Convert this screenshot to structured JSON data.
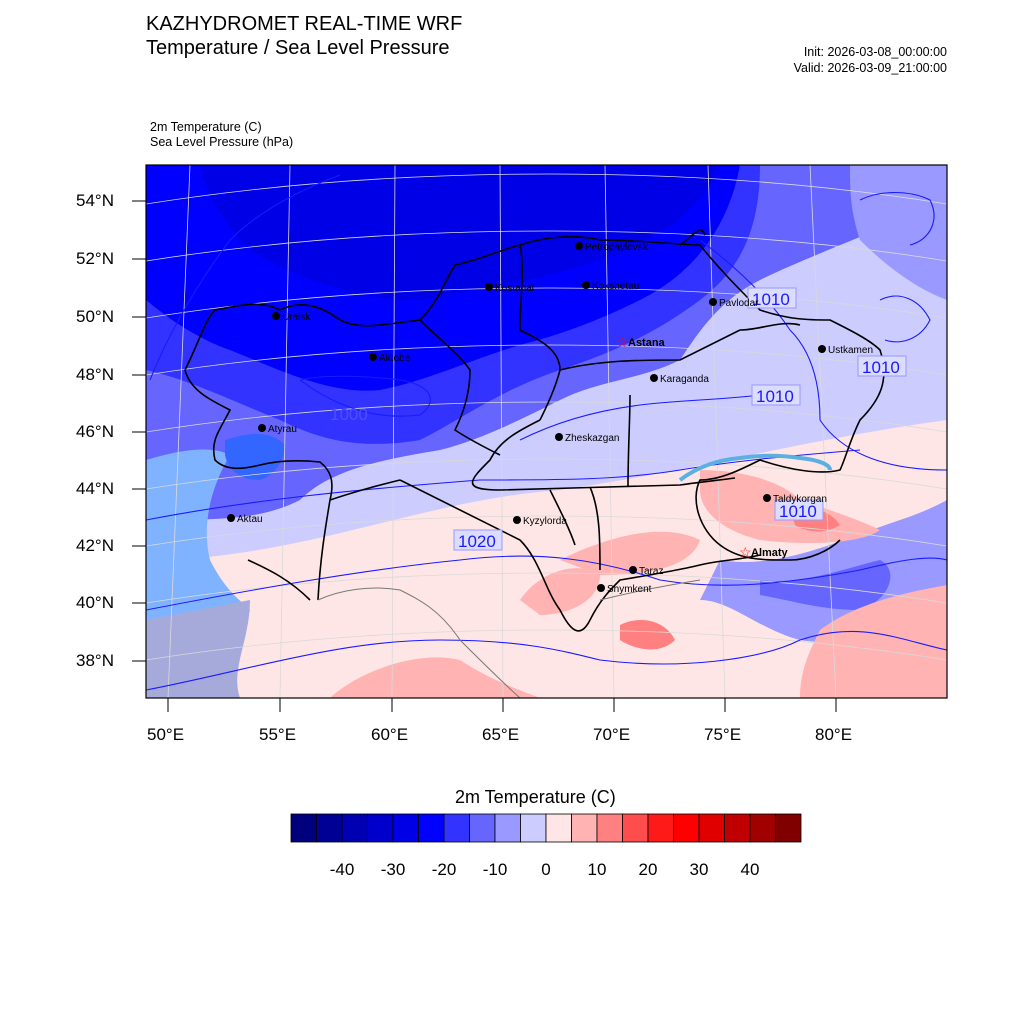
{
  "header": {
    "title_line1": "KAZHYDROMET REAL-TIME WRF",
    "title_line2": "Temperature / Sea Level Pressure",
    "init": "Init: 2026-03-08_00:00:00",
    "valid": "Valid: 2026-03-09_21:00:00"
  },
  "fields": {
    "field1": "2m Temperature   (C)",
    "field2": "Sea Level Pressure   (hPa)"
  },
  "map": {
    "lat_labels": [
      "54°N",
      "52°N",
      "50°N",
      "48°N",
      "46°N",
      "44°N",
      "42°N",
      "40°N",
      "38°N"
    ],
    "lon_labels": [
      "50°E",
      "55°E",
      "60°E",
      "65°E",
      "70°E",
      "75°E",
      "80°E"
    ],
    "cities": [
      {
        "name": "Petropavlovsk",
        "capital": false
      },
      {
        "name": "Kostanai",
        "capital": false
      },
      {
        "name": "Kokshetau",
        "capital": false
      },
      {
        "name": "Uralsk",
        "capital": false
      },
      {
        "name": "Aktobe",
        "capital": false
      },
      {
        "name": "Astana",
        "capital": true
      },
      {
        "name": "Pavlodar",
        "capital": false
      },
      {
        "name": "Ustkamen",
        "capital": false
      },
      {
        "name": "Karaganda",
        "capital": false
      },
      {
        "name": "Atyrau",
        "capital": false
      },
      {
        "name": "Zheskazgan",
        "capital": false
      },
      {
        "name": "Aktau",
        "capital": false
      },
      {
        "name": "Kyzylorda",
        "capital": false
      },
      {
        "name": "Taldykorgan",
        "capital": false
      },
      {
        "name": "Almaty",
        "capital": true
      },
      {
        "name": "Taraz",
        "capital": false
      },
      {
        "name": "Shymkent",
        "capital": false
      }
    ],
    "isobar_labels": [
      "1010",
      "1010",
      "1010",
      "1010",
      "1020",
      "1000"
    ]
  },
  "colorbar": {
    "title": "2m Temperature  (C)",
    "colors": [
      "#00007f",
      "#000095",
      "#0000b2",
      "#0000cc",
      "#0000e6",
      "#0000ff",
      "#3333ff",
      "#6666ff",
      "#9999ff",
      "#ccccff",
      "#ffe6e6",
      "#ffb3b3",
      "#ff8080",
      "#ff4d4d",
      "#ff1a1a",
      "#ff0000",
      "#e00000",
      "#c00000",
      "#a00000",
      "#800000"
    ],
    "tick_labels": [
      "-40",
      "-30",
      "-20",
      "-10",
      "0",
      "10",
      "20",
      "30",
      "40"
    ]
  }
}
